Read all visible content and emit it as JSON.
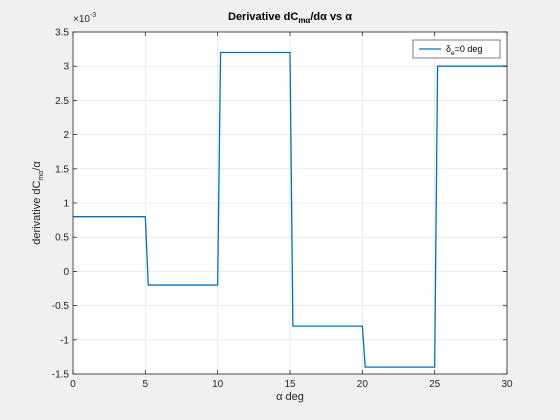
{
  "chart_data": {
    "type": "line",
    "title": "Derivative dC",
    "title_sub": "mα",
    "title_tail": "/dα vs α",
    "xlabel": "α deg",
    "ylabel": "derivative dC",
    "ylabel_sub": "mα",
    "ylabel_tail": "/α",
    "exponent_label": "×10",
    "exponent_power": "-3",
    "xlim": [
      0,
      30
    ],
    "ylim": [
      -1.5,
      3.5
    ],
    "x_ticks": [
      0,
      5,
      10,
      15,
      20,
      25,
      30
    ],
    "x_tick_labels": [
      "0",
      "5",
      "10",
      "15",
      "20",
      "25",
      "30"
    ],
    "y_ticks": [
      -1.5,
      -1,
      -0.5,
      0,
      0.5,
      1,
      1.5,
      2,
      2.5,
      3,
      3.5
    ],
    "y_tick_labels": [
      "-1.5",
      "-1",
      "-0.5",
      "0",
      "0.5",
      "1",
      "1.5",
      "2",
      "2.5",
      "3",
      "3.5"
    ],
    "grid": true,
    "legend_position": "top-right",
    "series": [
      {
        "name": "δ",
        "name_sub": "e",
        "name_tail": "=0 deg",
        "color": "#0072bd",
        "x": [
          0,
          5,
          5.2,
          10,
          10.2,
          15,
          15.2,
          20,
          20.2,
          25,
          25.2,
          30
        ],
        "y": [
          0.8,
          0.8,
          -0.2,
          -0.2,
          3.2,
          3.2,
          -0.8,
          -0.8,
          -1.4,
          -1.4,
          3.0,
          3.0
        ]
      }
    ]
  }
}
